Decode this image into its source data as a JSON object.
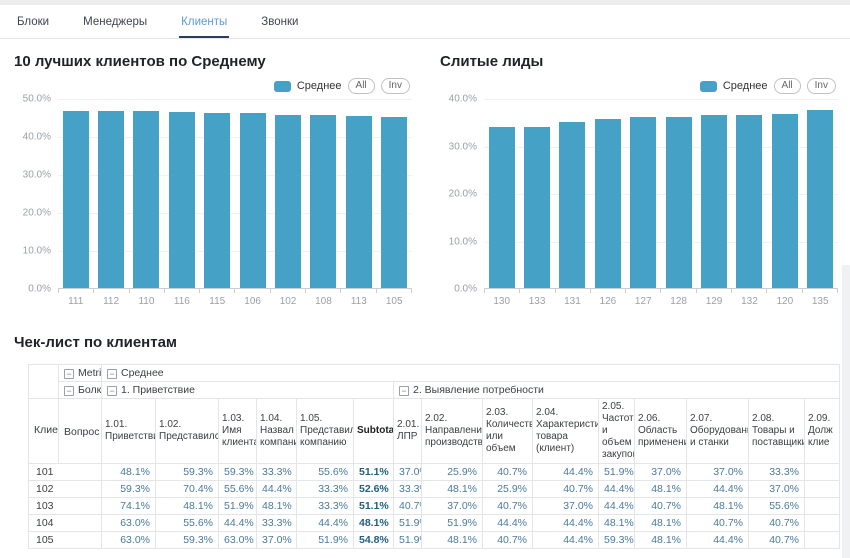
{
  "tabs": [
    {
      "label": "Блоки",
      "active": false
    },
    {
      "label": "Менеджеры",
      "active": false
    },
    {
      "label": "Клиенты",
      "active": true
    },
    {
      "label": "Звонки",
      "active": false
    }
  ],
  "colors": {
    "bar": "#45a2c6",
    "tab_active": "#5b9bd5",
    "tab_underline": "#2d3c5e",
    "value_text": "#497a9e",
    "subtotal_text": "#215e86"
  },
  "chart_data": [
    {
      "type": "bar",
      "title": "10 лучших клиентов по Среднему",
      "legend": {
        "series": "Среднее",
        "buttons": [
          "All",
          "Inv"
        ]
      },
      "legend_position": "top-right",
      "categories": [
        "111",
        "112",
        "110",
        "116",
        "115",
        "106",
        "102",
        "108",
        "113",
        "105"
      ],
      "values": [
        46.7,
        46.6,
        46.5,
        46.4,
        46.1,
        46.0,
        45.6,
        45.5,
        45.4,
        44.9
      ],
      "xlabel": "",
      "ylabel": "",
      "ylim": [
        0,
        50
      ],
      "ytick_step": 10,
      "ytick_format": "percent",
      "grid": true
    },
    {
      "type": "bar",
      "title": "Слитые лиды",
      "legend": {
        "series": "Среднее",
        "buttons": [
          "All",
          "Inv"
        ]
      },
      "legend_position": "top-right",
      "categories": [
        "130",
        "133",
        "131",
        "126",
        "127",
        "128",
        "129",
        "132",
        "120",
        "135"
      ],
      "values": [
        33.9,
        33.9,
        35.0,
        35.6,
        36.0,
        36.0,
        36.4,
        36.4,
        36.7,
        37.4
      ],
      "xlabel": "",
      "ylabel": "",
      "ylim": [
        0,
        40
      ],
      "ytick_step": 10,
      "ytick_format": "percent",
      "grid": true
    }
  ],
  "table": {
    "title": "Чек-лист по клиентам",
    "corner": {
      "metric_label": "Metric",
      "metric_value": "Среднее",
      "block_label": "Болк",
      "question_label": "Вопрос",
      "client_label": "Клиент"
    },
    "groups": [
      {
        "label": "1. Приветствие",
        "span": 6
      },
      {
        "label": "2. Выявление потребности",
        "span": 9
      }
    ],
    "columns": [
      {
        "label": "1.01. Приветствие"
      },
      {
        "label": "1.02. Представился"
      },
      {
        "label": "1.03. Имя клиента"
      },
      {
        "label": "1.04. Назвал компанию"
      },
      {
        "label": "1.05. Представил компанию"
      },
      {
        "label": "Subtotal",
        "bold": true
      },
      {
        "label": "2.01. ЛПР"
      },
      {
        "label": "2.02. Направления производства"
      },
      {
        "label": "2.03. Количество или объем"
      },
      {
        "label": "2.04. Характеристики товара (клиент)"
      },
      {
        "label": "2.05. Частота и объем закупок"
      },
      {
        "label": "2.06. Область применения"
      },
      {
        "label": "2.07. Оборудование и станки"
      },
      {
        "label": "2.08. Товары и поставщики"
      },
      {
        "label": "2.09. Долж клие"
      }
    ],
    "rows": [
      {
        "client": "101",
        "values": [
          "48.1%",
          "59.3%",
          "59.3%",
          "33.3%",
          "55.6%",
          "51.1%",
          "37.0%",
          "25.9%",
          "40.7%",
          "44.4%",
          "51.9%",
          "37.0%",
          "37.0%",
          "33.3%",
          ""
        ]
      },
      {
        "client": "102",
        "values": [
          "59.3%",
          "70.4%",
          "55.6%",
          "44.4%",
          "33.3%",
          "52.6%",
          "33.3%",
          "48.1%",
          "25.9%",
          "40.7%",
          "44.4%",
          "48.1%",
          "44.4%",
          "37.0%",
          ""
        ]
      },
      {
        "client": "103",
        "values": [
          "74.1%",
          "48.1%",
          "51.9%",
          "48.1%",
          "33.3%",
          "51.1%",
          "40.7%",
          "37.0%",
          "40.7%",
          "37.0%",
          "44.4%",
          "40.7%",
          "48.1%",
          "55.6%",
          ""
        ]
      },
      {
        "client": "104",
        "values": [
          "63.0%",
          "55.6%",
          "44.4%",
          "33.3%",
          "44.4%",
          "48.1%",
          "51.9%",
          "51.9%",
          "44.4%",
          "44.4%",
          "48.1%",
          "48.1%",
          "40.7%",
          "40.7%",
          ""
        ]
      },
      {
        "client": "105",
        "values": [
          "63.0%",
          "59.3%",
          "63.0%",
          "37.0%",
          "51.9%",
          "54.8%",
          "51.9%",
          "48.1%",
          "40.7%",
          "44.4%",
          "59.3%",
          "48.1%",
          "44.4%",
          "40.7%",
          ""
        ]
      }
    ]
  }
}
